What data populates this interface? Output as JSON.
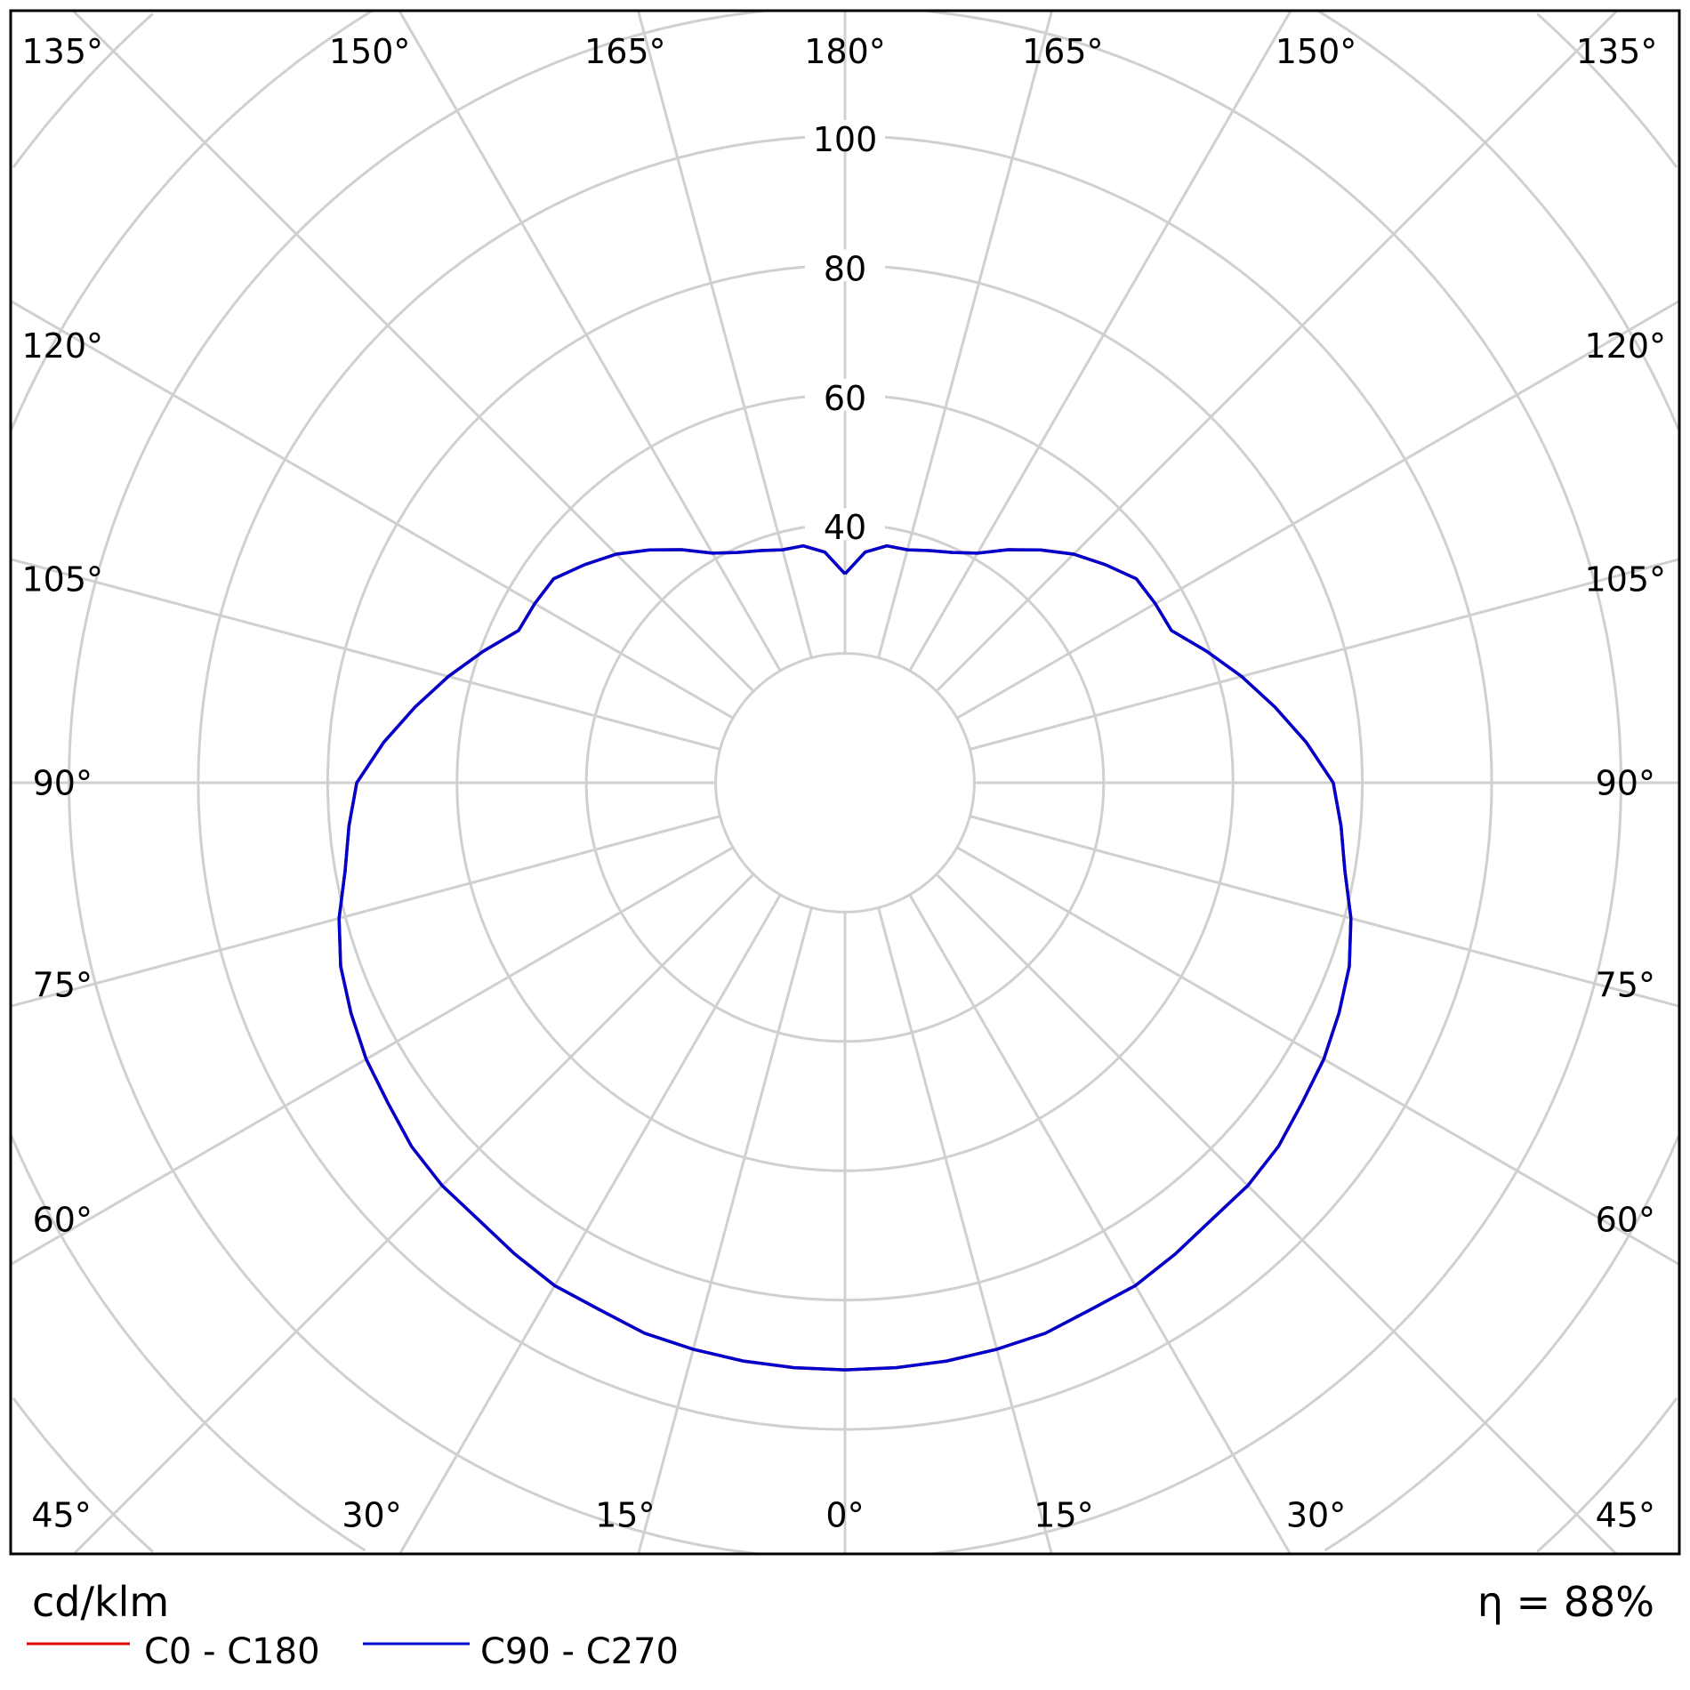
{
  "chart_data": {
    "type": "polar",
    "unit_label": "cd/klm",
    "efficiency_label": "η = 88%",
    "radial_ticks": [
      "40",
      "60",
      "80",
      "100"
    ],
    "radial_grid_step": 20,
    "angle_labels_top": [
      "135°",
      "150°",
      "165°",
      "180°",
      "165°",
      "150°",
      "135°"
    ],
    "angle_labels_left": [
      "120°",
      "105°",
      "90°",
      "75°",
      "60°"
    ],
    "angle_labels_right": [
      "120°",
      "105°",
      "90°",
      "75°",
      "60°"
    ],
    "angle_labels_bottom": [
      "45°",
      "30°",
      "15°",
      "0°",
      "15°",
      "30°",
      "45°"
    ],
    "angle_grid_step_deg": 15,
    "grid": true,
    "gamma_deg": [
      0,
      5,
      10,
      15,
      20,
      25,
      30,
      35,
      40,
      45,
      50,
      55,
      60,
      65,
      70,
      75,
      80,
      85,
      90,
      95,
      100,
      105,
      110,
      115,
      120,
      125,
      130,
      135,
      140,
      145,
      150,
      155,
      160,
      165,
      170,
      175,
      180
    ],
    "series": [
      {
        "name": "C0 - C180",
        "color": "#e00000",
        "values": [
          90.8,
          90.8,
          90.8,
          90.7,
          90.6,
          89.9,
          89.8,
          89.0,
          88.2,
          88.1,
          87.5,
          86.3,
          85.5,
          84.3,
          83.0,
          81.0,
          78.5,
          77.0,
          75.5,
          71.6,
          67.5,
          63.5,
          59.5,
          55.7,
          55.4,
          55.0,
          52.5,
          50.0,
          47.0,
          44.0,
          41.0,
          39.3,
          38.2,
          37.3,
          37.2,
          35.8,
          32.3
        ]
      },
      {
        "name": "C90 - C270",
        "color": "#0000cc",
        "values": [
          90.8,
          90.8,
          90.8,
          90.7,
          90.6,
          89.9,
          89.8,
          89.0,
          88.2,
          88.1,
          87.5,
          86.3,
          85.5,
          84.3,
          83.0,
          81.0,
          78.5,
          77.0,
          75.5,
          71.6,
          67.5,
          63.5,
          59.5,
          55.7,
          55.4,
          55.0,
          52.5,
          50.0,
          47.0,
          44.0,
          41.0,
          39.3,
          38.2,
          37.3,
          37.2,
          35.8,
          32.3
        ]
      }
    ],
    "legend_position": "bottom-left"
  }
}
